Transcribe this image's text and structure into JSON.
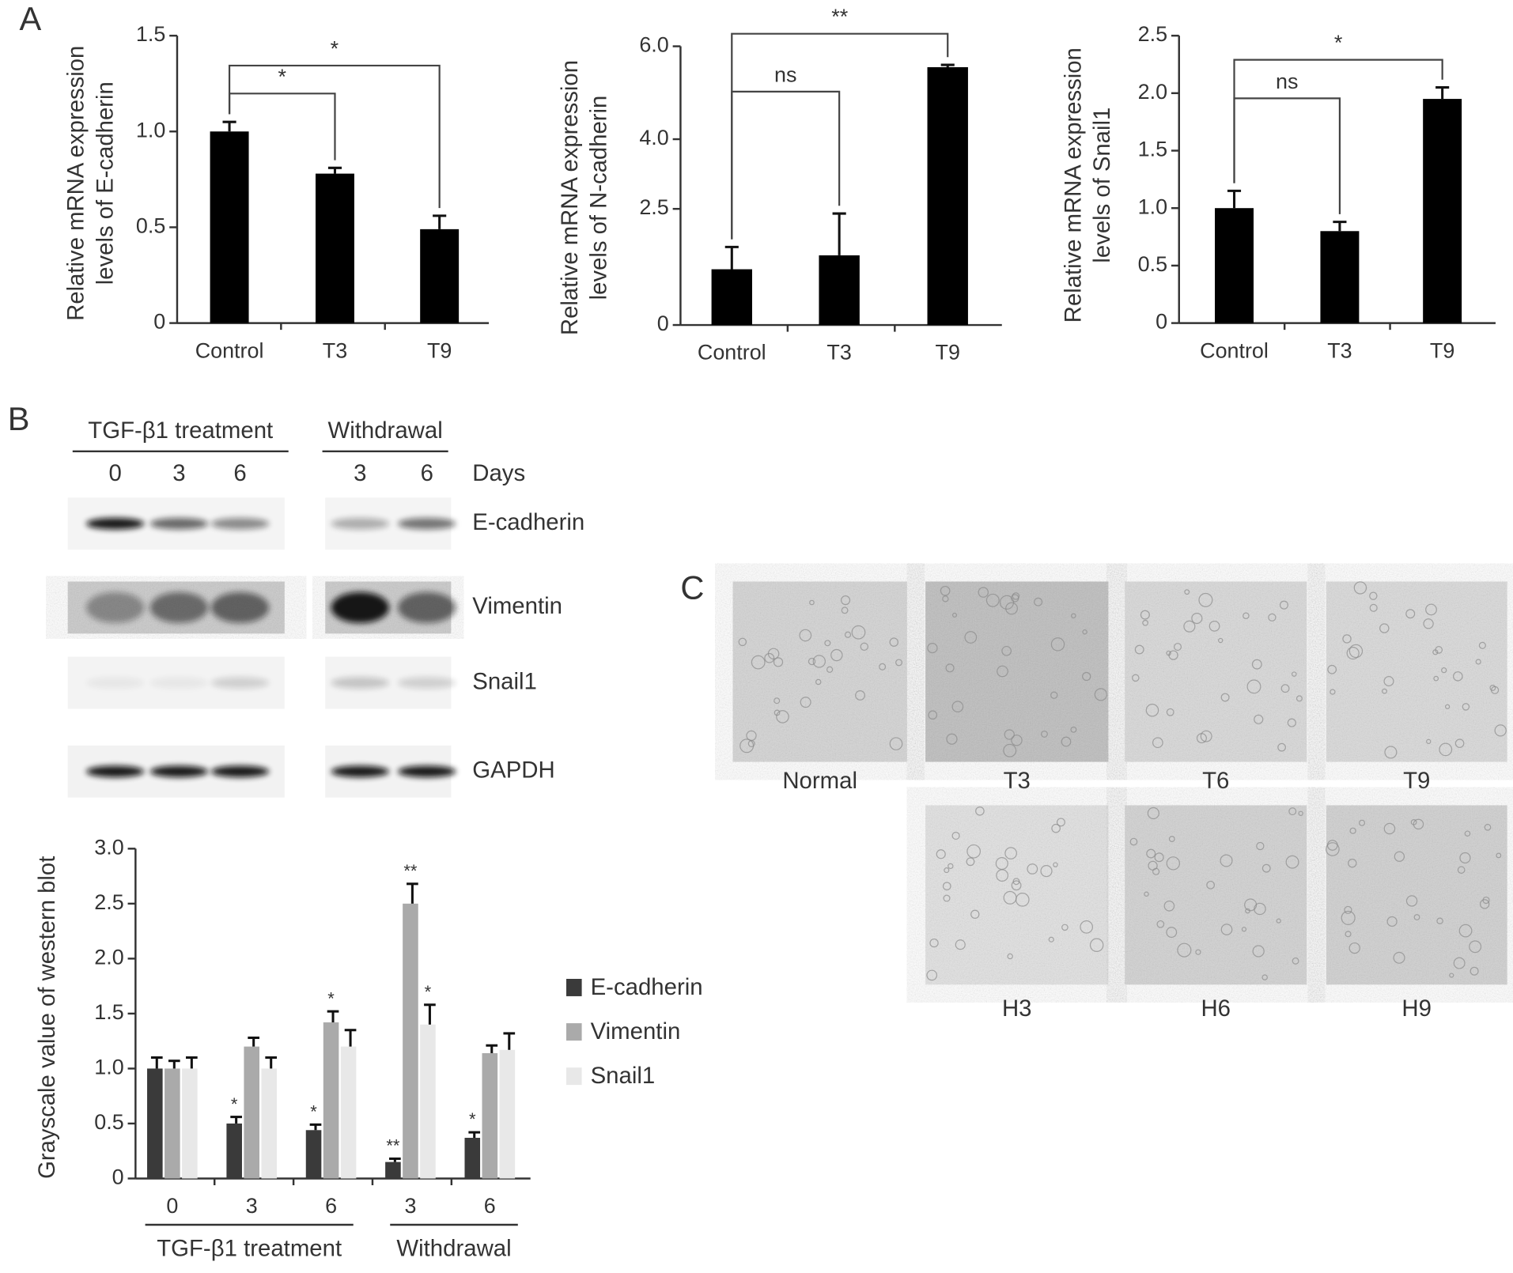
{
  "panels": [
    "A",
    "B",
    "C"
  ],
  "chart_data": [
    {
      "type": "bar",
      "ylabel": [
        "Relative mRNA expression",
        "levels of E-cadherin"
      ],
      "categories": [
        "Control",
        "T3",
        "T9"
      ],
      "values": [
        1.0,
        0.78,
        0.49
      ],
      "errors": [
        0.05,
        0.03,
        0.07
      ],
      "color": "#000000",
      "ylim": [
        0,
        1.5
      ],
      "yticks": [
        0,
        0.5,
        {
          "value": 1,
          "label": "1.0"
        },
        1.5
      ],
      "brackets": [
        "*",
        "*"
      ]
    },
    {
      "type": "bar",
      "ylabel": [
        "Relative mRNA expression",
        "levels of N-cadherin"
      ],
      "categories": [
        "Control",
        "T3",
        "T9"
      ],
      "values": [
        1.2,
        1.5,
        5.55
      ],
      "errors": [
        0.48,
        0.9,
        0.05
      ],
      "color": "#000000",
      "ylim": [
        0,
        6
      ],
      "yticks": [
        0,
        2.5,
        {
          "value": 4,
          "label": "4.0"
        },
        {
          "value": 6,
          "label": "6.0"
        }
      ],
      "brackets": [
        "ns",
        "**"
      ]
    },
    {
      "type": "bar",
      "ylabel": [
        "Relative mRNA expression",
        "levels of Snail1"
      ],
      "categories": [
        "Control",
        "T3",
        "T9"
      ],
      "values": [
        1.0,
        0.8,
        1.95
      ],
      "errors": [
        0.15,
        0.08,
        0.1
      ],
      "color": "#000000",
      "ylim": [
        0,
        2.5
      ],
      "yticks": [
        0,
        0.5,
        {
          "value": 1,
          "label": "1.0"
        },
        1.5,
        {
          "value": 2,
          "label": "2.0"
        },
        2.5
      ],
      "brackets": [
        "ns",
        "*"
      ]
    },
    {
      "type": "grouped_bar",
      "ylabel": "Grayscale value of western blot",
      "categories": [
        "0",
        "3",
        "6",
        "3",
        "6"
      ],
      "groups": [
        "TGF-β1 treatment",
        "Withdrawal"
      ],
      "series": [
        {
          "name": "E-cadherin",
          "color": "#3a3a3a",
          "values": [
            1.0,
            0.5,
            0.44,
            0.15,
            0.37
          ],
          "errors": [
            0.1,
            0.06,
            0.05,
            0.03,
            0.05
          ],
          "annotations": [
            null,
            "*",
            "*",
            "**",
            "*"
          ]
        },
        {
          "name": "Vimentin",
          "color": "#aaaaaa",
          "values": [
            1.0,
            1.2,
            1.42,
            2.5,
            1.14
          ],
          "errors": [
            0.07,
            0.08,
            0.1,
            0.18,
            0.07
          ],
          "annotations": [
            null,
            null,
            "*",
            "**",
            null
          ]
        },
        {
          "name": "Snail1",
          "color": "#e8e8e8",
          "values": [
            1.0,
            1.0,
            1.2,
            1.4,
            1.17
          ],
          "errors": [
            0.1,
            0.1,
            0.15,
            0.18,
            0.15
          ],
          "annotations": [
            null,
            null,
            null,
            "*",
            null
          ]
        }
      ],
      "ylim": [
        0,
        3
      ],
      "yticks": [
        0,
        0.5,
        {
          "value": 1,
          "label": "1.0"
        },
        1.5,
        {
          "value": 2,
          "label": "2.0"
        },
        2.5,
        {
          "value": 3,
          "label": "3.0"
        }
      ],
      "legend": "right"
    }
  ],
  "blot": {
    "groups": [
      "TGF-β1 treatment",
      "Withdrawal"
    ],
    "days_label": "Days",
    "days": [
      "0",
      "3",
      "6",
      "3",
      "6"
    ],
    "rows": [
      "E-cadherin",
      "Vimentin",
      "Snail1",
      "GAPDH"
    ]
  },
  "micrographs": {
    "labels": [
      "Normal",
      "T3",
      "T6",
      "T9",
      "H3",
      "H6",
      "H9"
    ]
  }
}
